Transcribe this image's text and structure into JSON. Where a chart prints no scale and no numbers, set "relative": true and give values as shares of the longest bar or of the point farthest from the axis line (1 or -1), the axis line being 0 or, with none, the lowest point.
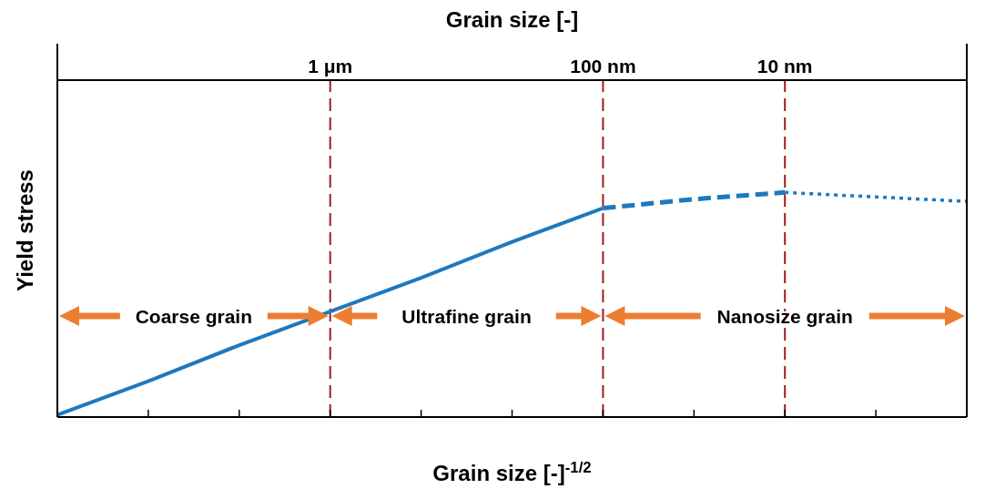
{
  "chart_data": {
    "type": "line",
    "relative": true,
    "x2label": "Grain size [-]",
    "xlabel": "Grain size [-]$^{-1/2}$",
    "ylabel": "Yield stress",
    "categories": [
      null,
      null,
      null,
      "1 μm",
      null,
      null,
      "100 nm",
      null,
      "10 nm",
      null,
      null
    ],
    "series": [
      {
        "color": "#1f78bd",
        "line_style": "solid",
        "values": [
          0.01,
          0.16,
          0.32,
          0.47,
          0.62,
          0.78,
          0.93,
          null,
          null,
          null,
          null
        ]
      },
      {
        "color": "#1f78bd",
        "line_style": "dashed",
        "values": [
          null,
          null,
          null,
          null,
          null,
          null,
          0.93,
          0.97,
          1,
          null,
          null
        ]
      },
      {
        "color": "#1f78bd",
        "line_style": "dotted",
        "values": [
          null,
          null,
          null,
          null,
          null,
          null,
          null,
          null,
          1,
          0.98,
          0.96
        ]
      }
    ],
    "ref_lines": [
      {
        "axis": "x",
        "value": "1 μm",
        "color": "#a01c1c",
        "line_style": "dashed"
      },
      {
        "axis": "x",
        "value": "100 nm",
        "color": "#a01c1c",
        "line_style": "dashed"
      },
      {
        "axis": "x",
        "value": "10 nm",
        "color": "#a01c1c",
        "line_style": "dashed"
      }
    ],
    "annotations": [
      "Coarse grain",
      "Ultrafine grain",
      "Nanosize grain"
    ],
    "grid": false,
    "marker": "none"
  }
}
